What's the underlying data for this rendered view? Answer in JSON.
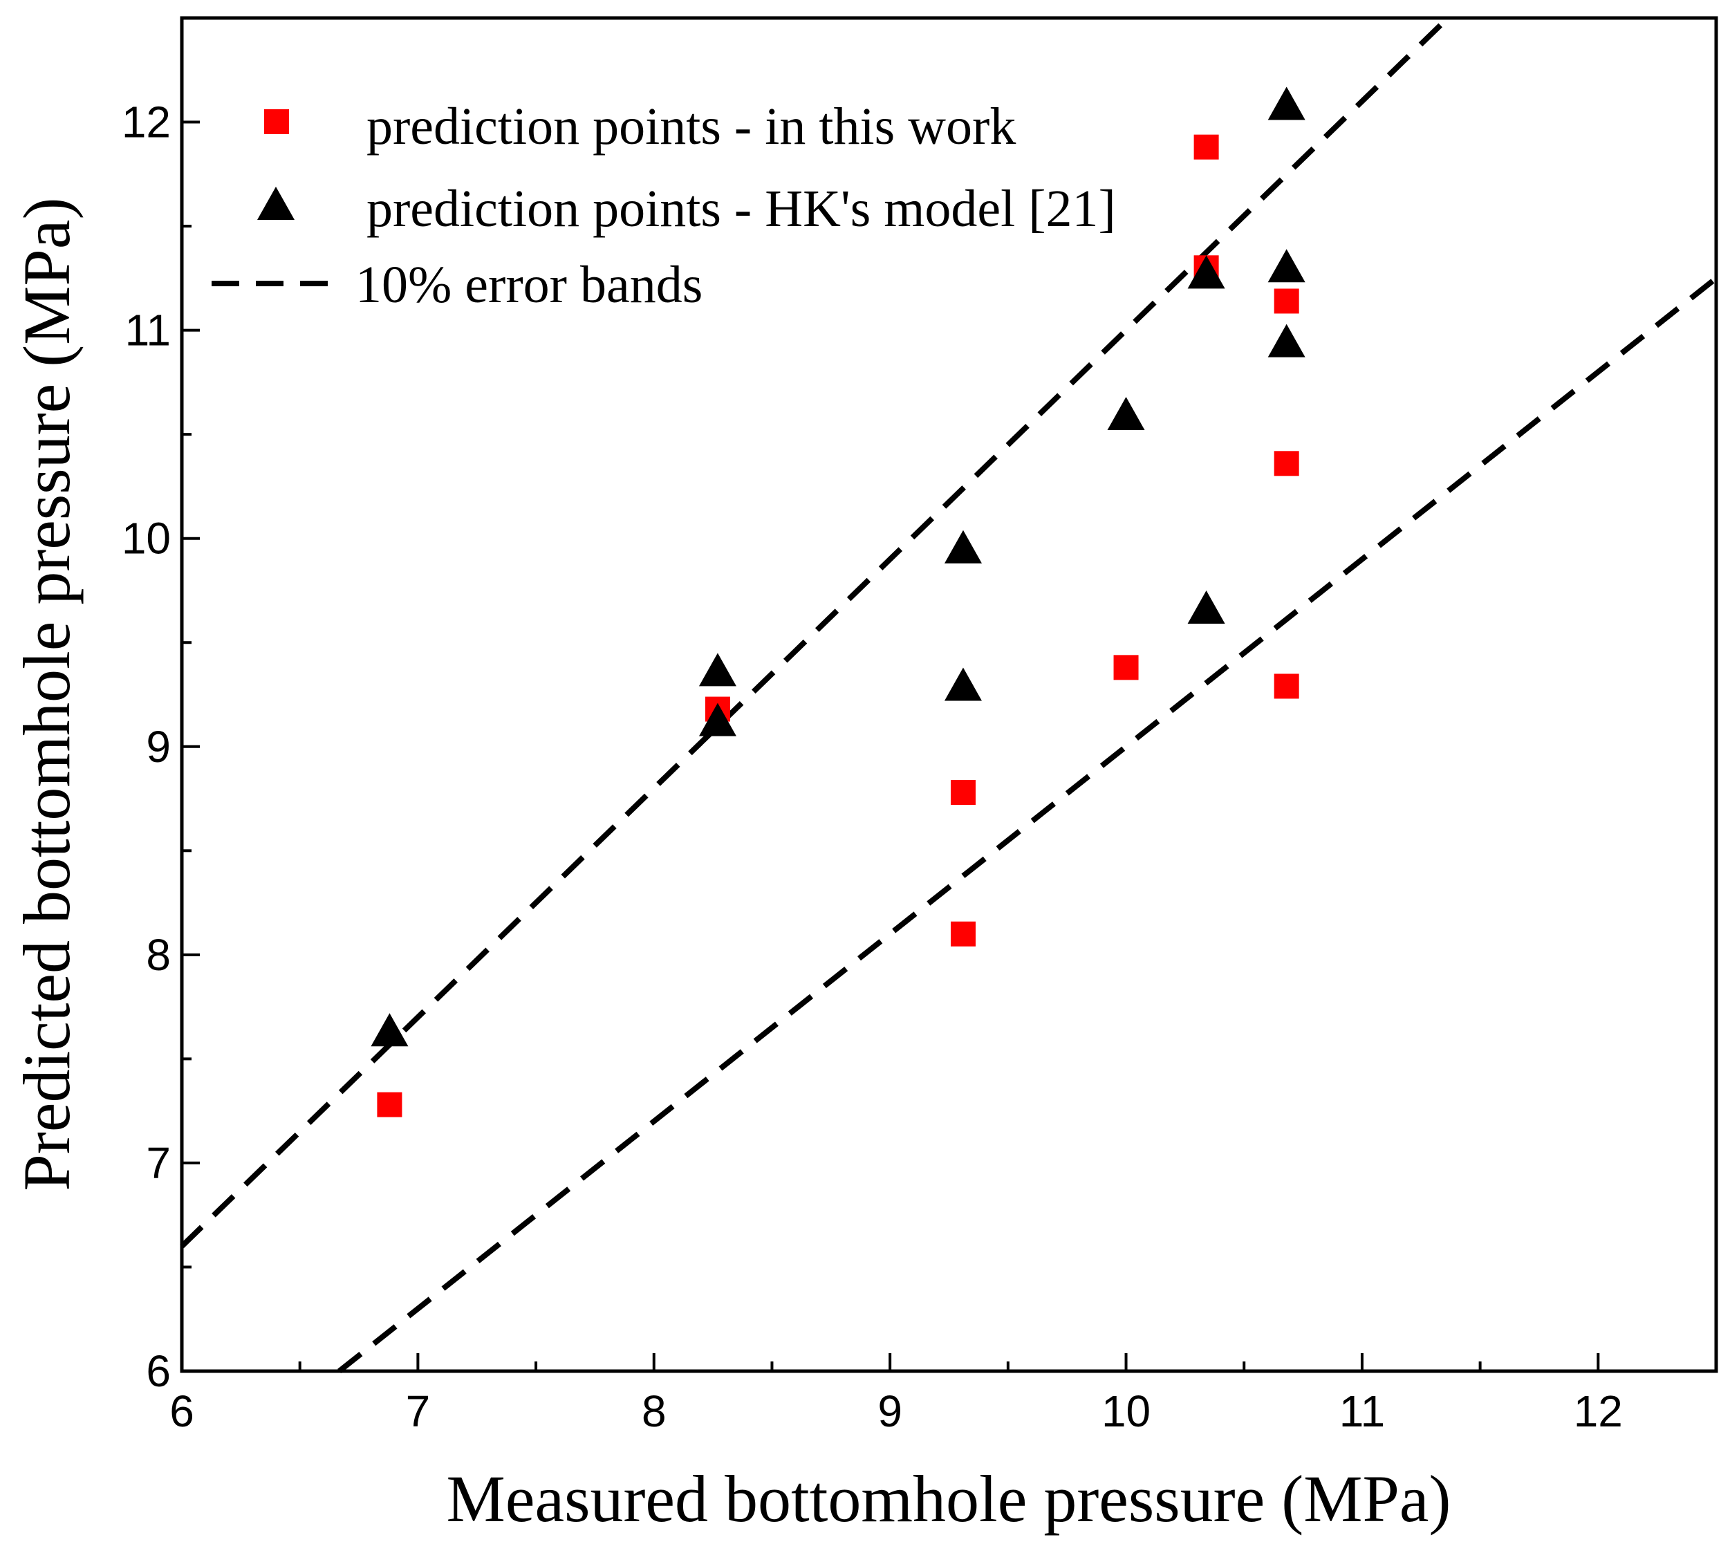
{
  "chart_data": {
    "type": "scatter",
    "title": "",
    "xlabel": "Measured bottomhole pressure (MPa)",
    "ylabel": "Predicted bottomhole pressure (MPa)",
    "xlim": [
      6,
      12.5
    ],
    "ylim": [
      6,
      12.5
    ],
    "xticks": [
      "6",
      "7",
      "8",
      "9",
      "10",
      "11",
      "12"
    ],
    "yticks": [
      "6",
      "7",
      "8",
      "9",
      "10",
      "11",
      "12"
    ],
    "grid": false,
    "legend_position": "top-left",
    "series": [
      {
        "name": "prediction points - in this work",
        "marker": "square",
        "color": "#ff0000",
        "points": [
          {
            "x": 6.88,
            "y": 7.28
          },
          {
            "x": 8.27,
            "y": 9.18
          },
          {
            "x": 9.31,
            "y": 8.78
          },
          {
            "x": 9.31,
            "y": 8.1
          },
          {
            "x": 10.0,
            "y": 9.38
          },
          {
            "x": 10.34,
            "y": 11.88
          },
          {
            "x": 10.34,
            "y": 11.3
          },
          {
            "x": 10.68,
            "y": 11.14
          },
          {
            "x": 10.68,
            "y": 10.36
          },
          {
            "x": 10.68,
            "y": 9.29
          }
        ]
      },
      {
        "name": "prediction points - HK's model [21]",
        "marker": "triangle",
        "color": "#000000",
        "points": [
          {
            "x": 6.88,
            "y": 7.64
          },
          {
            "x": 8.27,
            "y": 9.37
          },
          {
            "x": 8.27,
            "y": 9.13
          },
          {
            "x": 9.31,
            "y": 9.96
          },
          {
            "x": 9.31,
            "y": 9.3
          },
          {
            "x": 10.0,
            "y": 10.6
          },
          {
            "x": 10.34,
            "y": 11.28
          },
          {
            "x": 10.34,
            "y": 9.67
          },
          {
            "x": 10.68,
            "y": 12.09
          },
          {
            "x": 10.68,
            "y": 11.31
          },
          {
            "x": 10.68,
            "y": 10.95
          }
        ]
      }
    ],
    "reference_lines": {
      "name": "10% error bands",
      "style": "dashed",
      "color": "#000000",
      "factors": [
        1.1,
        0.9
      ]
    }
  }
}
